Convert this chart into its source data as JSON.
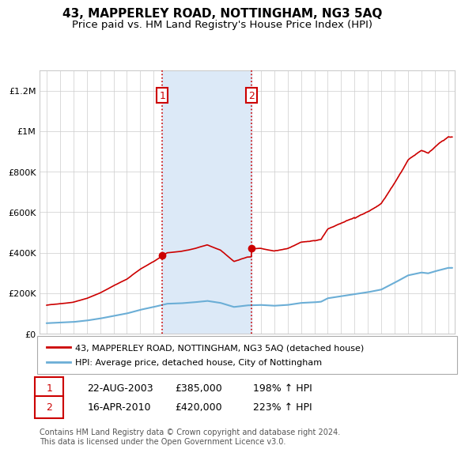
{
  "title": "43, MAPPERLEY ROAD, NOTTINGHAM, NG3 5AQ",
  "subtitle": "Price paid vs. HM Land Registry's House Price Index (HPI)",
  "ylim": [
    0,
    1300000
  ],
  "yticks": [
    0,
    200000,
    400000,
    600000,
    800000,
    1000000,
    1200000
  ],
  "ytick_labels": [
    "£0",
    "£200K",
    "£400K",
    "£600K",
    "£800K",
    "£1M",
    "£1.2M"
  ],
  "xlim_start": 1994.5,
  "xlim_end": 2025.5,
  "sale1_date": 2003.64,
  "sale1_price": 385000,
  "sale2_date": 2010.29,
  "sale2_price": 420000,
  "sale1_display": "22-AUG-2003",
  "sale1_price_str": "£385,000",
  "sale1_hpi": "198% ↑ HPI",
  "sale2_display": "16-APR-2010",
  "sale2_price_str": "£420,000",
  "sale2_hpi": "223% ↑ HPI",
  "shaded_region_color": "#dce9f7",
  "dashed_line_color": "#cc0000",
  "box_edge_color": "#cc0000",
  "legend_label1": "43, MAPPERLEY ROAD, NOTTINGHAM, NG3 5AQ (detached house)",
  "legend_label2": "HPI: Average price, detached house, City of Nottingham",
  "footer": "Contains HM Land Registry data © Crown copyright and database right 2024.\nThis data is licensed under the Open Government Licence v3.0.",
  "hpi_line_color": "#6baed6",
  "price_line_color": "#cc0000",
  "background_color": "#ffffff",
  "grid_color": "#cccccc",
  "title_fontsize": 11,
  "subtitle_fontsize": 9.5,
  "tick_fontsize": 8
}
